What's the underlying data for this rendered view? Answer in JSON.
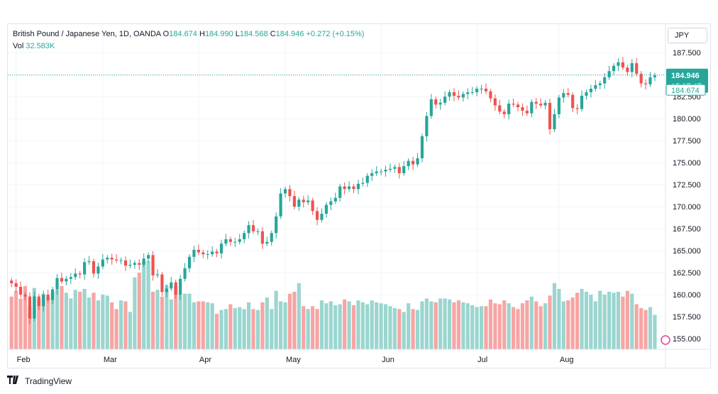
{
  "legend": {
    "symbol": "British Pound / Japanese Yen, 1D, OANDA",
    "o_label": "O",
    "o_value": "184.674",
    "h_label": "H",
    "h_value": "184.990",
    "l_label": "L",
    "l_value": "184.568",
    "c_label": "C",
    "c_value": "184.946",
    "change": "+0.272 (+0.15%)",
    "vol_label": "Vol",
    "vol_value": "32.583K"
  },
  "currency_button": "JPY",
  "price_tags": {
    "last": "184.946",
    "countdown": "15:07:47",
    "open": "184.674"
  },
  "brand": {
    "name": "TradingView"
  },
  "colors": {
    "up": "#26a69a",
    "down": "#ef5350",
    "vol_up": "#9ad6cf",
    "vol_down": "#f6a5a4",
    "grid": "#f0f3fa"
  },
  "chart_data": {
    "type": "candlestick",
    "title": "British Pound / Japanese Yen, 1D, OANDA",
    "y_ticks": [
      "155.000",
      "157.500",
      "160.000",
      "162.500",
      "165.000",
      "167.500",
      "170.000",
      "172.500",
      "175.000",
      "177.500",
      "180.000",
      "182.500",
      "185.000",
      "187.500"
    ],
    "y_range": [
      153.8,
      188.8
    ],
    "x_labels": [
      {
        "label": "Feb",
        "index": 1
      },
      {
        "label": "Mar",
        "index": 20
      },
      {
        "label": "Apr",
        "index": 41
      },
      {
        "label": "May",
        "index": 60
      },
      {
        "label": "Jun",
        "index": 81
      },
      {
        "label": "Jul",
        "index": 102
      },
      {
        "label": "Aug",
        "index": 120
      }
    ],
    "closes": [
      161.3,
      160.9,
      160.0,
      159.8,
      157.3,
      159.8,
      158.7,
      160.0,
      159.4,
      160.6,
      161.9,
      161.5,
      161.8,
      162.0,
      162.4,
      162.3,
      163.7,
      163.8,
      162.4,
      163.2,
      164.0,
      164.2,
      164.0,
      163.9,
      163.9,
      163.3,
      163.4,
      163.6,
      163.4,
      164.1,
      164.5,
      162.2,
      162.3,
      160.3,
      160.7,
      161.4,
      160.0,
      161.8,
      163.0,
      164.3,
      165.1,
      164.8,
      164.6,
      164.6,
      164.9,
      164.7,
      165.8,
      166.3,
      166.0,
      166.0,
      166.3,
      167.0,
      167.9,
      167.2,
      167.2,
      165.8,
      166.0,
      167.0,
      168.9,
      171.5,
      172.0,
      171.2,
      170.0,
      170.8,
      170.5,
      170.7,
      169.5,
      168.5,
      169.2,
      170.2,
      170.6,
      171.0,
      172.3,
      172.0,
      172.3,
      172.0,
      172.6,
      172.7,
      173.5,
      173.8,
      174.0,
      174.0,
      174.2,
      174.3,
      174.5,
      173.8,
      174.6,
      175.2,
      174.8,
      175.5,
      178.0,
      180.3,
      182.2,
      181.6,
      181.8,
      182.5,
      183.0,
      182.6,
      182.4,
      182.8,
      183.0,
      183.0,
      183.4,
      183.4,
      183.1,
      182.3,
      181.5,
      180.8,
      180.5,
      181.7,
      181.6,
      181.3,
      180.9,
      180.6,
      181.9,
      181.7,
      181.5,
      181.8,
      178.8,
      180.5,
      182.4,
      182.9,
      182.7,
      181.2,
      181.1,
      182.6,
      183.0,
      183.4,
      183.8,
      184.0,
      184.7,
      185.4,
      186.0,
      186.4,
      185.8,
      185.3,
      186.3,
      185.1,
      184.0,
      183.9,
      184.7,
      184.9
    ],
    "volume_relative": [
      0.55,
      0.61,
      0.53,
      0.66,
      0.45,
      0.64,
      0.52,
      0.58,
      0.54,
      0.59,
      0.62,
      0.66,
      0.59,
      0.53,
      0.62,
      0.6,
      0.63,
      0.54,
      0.59,
      0.51,
      0.57,
      0.56,
      0.49,
      0.42,
      0.51,
      0.5,
      0.39,
      0.75,
      0.8,
      0.92,
      0.92,
      0.6,
      0.62,
      0.55,
      0.67,
      0.52,
      0.66,
      0.57,
      0.58,
      0.58,
      0.49,
      0.5,
      0.5,
      0.49,
      0.48,
      0.37,
      0.41,
      0.42,
      0.47,
      0.43,
      0.44,
      0.42,
      0.49,
      0.42,
      0.41,
      0.49,
      0.54,
      0.42,
      0.61,
      0.5,
      0.49,
      0.58,
      0.6,
      0.69,
      0.45,
      0.42,
      0.45,
      0.42,
      0.51,
      0.48,
      0.5,
      0.46,
      0.47,
      0.52,
      0.5,
      0.46,
      0.51,
      0.49,
      0.47,
      0.51,
      0.49,
      0.48,
      0.47,
      0.45,
      0.43,
      0.42,
      0.39,
      0.48,
      0.42,
      0.41,
      0.5,
      0.53,
      0.5,
      0.49,
      0.53,
      0.53,
      0.52,
      0.49,
      0.51,
      0.49,
      0.48,
      0.46,
      0.44,
      0.45,
      0.45,
      0.52,
      0.48,
      0.47,
      0.51,
      0.48,
      0.44,
      0.42,
      0.48,
      0.51,
      0.55,
      0.5,
      0.45,
      0.48,
      0.56,
      0.69,
      0.63,
      0.5,
      0.51,
      0.54,
      0.59,
      0.63,
      0.6,
      0.57,
      0.5,
      0.61,
      0.57,
      0.6,
      0.59,
      0.6,
      0.55,
      0.61,
      0.58,
      0.47,
      0.43,
      0.41,
      0.44,
      0.36,
      0.33
    ]
  }
}
